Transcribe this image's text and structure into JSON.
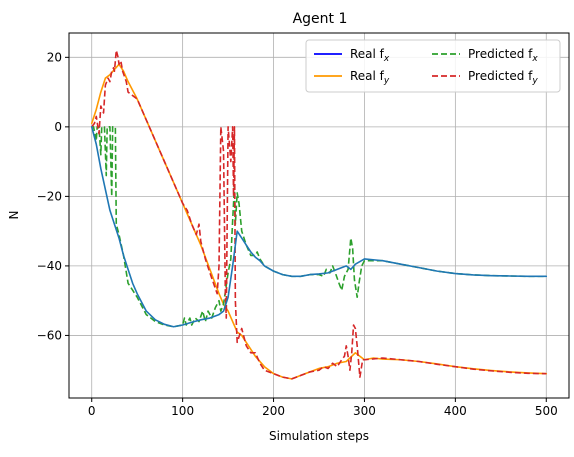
{
  "chart_data": {
    "type": "line",
    "title": "Agent 1",
    "xlabel": "Simulation steps",
    "ylabel": "N",
    "xlim": [
      -25,
      525
    ],
    "ylim": [
      -78,
      27
    ],
    "x_ticks": [
      0,
      100,
      200,
      300,
      400,
      500
    ],
    "y_ticks": [
      20,
      0,
      -20,
      -40,
      -60
    ],
    "grid": true,
    "legend": {
      "placement": "top-right",
      "columns": 2
    },
    "series": [
      {
        "name": "Real f_x",
        "name_base": "Real f",
        "subscript": "x",
        "color": "#0000ff",
        "dash": "solid",
        "legend_only": true,
        "points": []
      },
      {
        "name": "Real f_y",
        "name_base": "Real f",
        "subscript": "y",
        "color": "#ff9900",
        "dash": "solid",
        "points": [
          [
            0,
            1
          ],
          [
            5,
            5
          ],
          [
            10,
            10
          ],
          [
            15,
            14
          ],
          [
            20,
            15
          ],
          [
            25,
            16.5
          ],
          [
            30,
            18
          ],
          [
            35,
            16
          ],
          [
            40,
            13
          ],
          [
            50,
            8
          ],
          [
            60,
            2
          ],
          [
            70,
            -4
          ],
          [
            80,
            -10
          ],
          [
            90,
            -16
          ],
          [
            100,
            -22
          ],
          [
            110,
            -28
          ],
          [
            120,
            -34
          ],
          [
            130,
            -41
          ],
          [
            140,
            -48
          ],
          [
            145,
            -51
          ],
          [
            150,
            -53
          ],
          [
            155,
            -56
          ],
          [
            160,
            -59
          ],
          [
            165,
            -60
          ],
          [
            170,
            -62
          ],
          [
            180,
            -66
          ],
          [
            190,
            -69
          ],
          [
            200,
            -71
          ],
          [
            210,
            -72
          ],
          [
            220,
            -72.5
          ],
          [
            230,
            -71.5
          ],
          [
            240,
            -70.5
          ],
          [
            250,
            -69.5
          ],
          [
            260,
            -69
          ],
          [
            270,
            -68
          ],
          [
            280,
            -67.5
          ],
          [
            290,
            -65
          ],
          [
            300,
            -67
          ],
          [
            310,
            -66.5
          ],
          [
            320,
            -66.8
          ],
          [
            340,
            -67
          ],
          [
            360,
            -67.5
          ],
          [
            380,
            -68.2
          ],
          [
            400,
            -69
          ],
          [
            420,
            -69.6
          ],
          [
            440,
            -70.1
          ],
          [
            460,
            -70.5
          ],
          [
            480,
            -70.8
          ],
          [
            500,
            -71
          ]
        ]
      },
      {
        "name": "Predicted f_x",
        "name_base": "Predicted f",
        "subscript": "x",
        "color": "#2ca02c",
        "dash": "dashed",
        "points": [
          [
            0,
            0
          ],
          [
            2,
            0
          ],
          [
            5,
            -4
          ],
          [
            6,
            0
          ],
          [
            8,
            0
          ],
          [
            10,
            -8
          ],
          [
            11,
            0
          ],
          [
            14,
            0
          ],
          [
            16,
            -14
          ],
          [
            17,
            0
          ],
          [
            20,
            0
          ],
          [
            22,
            -20
          ],
          [
            23,
            0
          ],
          [
            26,
            0
          ],
          [
            27,
            -28
          ],
          [
            30,
            -31
          ],
          [
            35,
            -37
          ],
          [
            40,
            -45
          ],
          [
            45,
            -47
          ],
          [
            50,
            -49
          ],
          [
            60,
            -54
          ],
          [
            70,
            -56
          ],
          [
            80,
            -57
          ],
          [
            90,
            -57.5
          ],
          [
            100,
            -57
          ],
          [
            102,
            -55
          ],
          [
            104,
            -57
          ],
          [
            108,
            -55
          ],
          [
            110,
            -57
          ],
          [
            114,
            -55
          ],
          [
            118,
            -56
          ],
          [
            122,
            -53
          ],
          [
            125,
            -56
          ],
          [
            128,
            -53
          ],
          [
            132,
            -55
          ],
          [
            136,
            -52
          ],
          [
            140,
            -50
          ],
          [
            142,
            -53
          ],
          [
            145,
            -51
          ],
          [
            150,
            -42
          ],
          [
            153,
            -38
          ],
          [
            155,
            -27
          ],
          [
            157,
            -17
          ],
          [
            158,
            -28
          ],
          [
            160,
            -19
          ],
          [
            162,
            -22
          ],
          [
            165,
            -30
          ],
          [
            170,
            -34
          ],
          [
            175,
            -37
          ],
          [
            180,
            -37
          ],
          [
            182,
            -36
          ],
          [
            185,
            -38
          ],
          [
            190,
            -40
          ],
          [
            200,
            -41.5
          ],
          [
            210,
            -42.5
          ],
          [
            220,
            -43
          ],
          [
            230,
            -43
          ],
          [
            240,
            -42.5
          ],
          [
            250,
            -42.5
          ],
          [
            255,
            -43
          ],
          [
            258,
            -41
          ],
          [
            262,
            -42
          ],
          [
            265,
            -40
          ],
          [
            268,
            -42
          ],
          [
            272,
            -45
          ],
          [
            275,
            -47
          ],
          [
            278,
            -43
          ],
          [
            282,
            -41
          ],
          [
            285,
            -32
          ],
          [
            287,
            -35
          ],
          [
            289,
            -44
          ],
          [
            292,
            -49
          ],
          [
            294,
            -45
          ],
          [
            297,
            -40
          ],
          [
            300,
            -38.5
          ],
          [
            320,
            -38.5
          ],
          [
            340,
            -39.5
          ],
          [
            360,
            -40.5
          ],
          [
            380,
            -41.5
          ],
          [
            400,
            -42.2
          ],
          [
            420,
            -42.6
          ],
          [
            440,
            -42.8
          ],
          [
            460,
            -42.9
          ],
          [
            480,
            -43
          ],
          [
            500,
            -43
          ]
        ]
      },
      {
        "name": "Predicted f_y",
        "name_base": "Predicted f",
        "subscript": "y",
        "color": "#d62728",
        "dash": "dashed",
        "points": [
          [
            0,
            0
          ],
          [
            3,
            1
          ],
          [
            5,
            3
          ],
          [
            8,
            -2
          ],
          [
            10,
            6
          ],
          [
            13,
            4
          ],
          [
            15,
            12
          ],
          [
            18,
            14
          ],
          [
            20,
            13
          ],
          [
            22,
            16
          ],
          [
            24,
            17
          ],
          [
            25,
            16
          ],
          [
            27,
            22
          ],
          [
            29,
            20
          ],
          [
            30,
            18
          ],
          [
            32,
            19
          ],
          [
            34,
            16
          ],
          [
            38,
            13
          ],
          [
            40,
            10
          ],
          [
            45,
            9
          ],
          [
            50,
            8
          ],
          [
            60,
            2
          ],
          [
            70,
            -4
          ],
          [
            80,
            -10
          ],
          [
            90,
            -16
          ],
          [
            100,
            -22
          ],
          [
            105,
            -24
          ],
          [
            110,
            -28
          ],
          [
            115,
            -31
          ],
          [
            118,
            -28
          ],
          [
            120,
            -33
          ],
          [
            125,
            -38
          ],
          [
            130,
            -42
          ],
          [
            138,
            -48
          ],
          [
            140,
            -40
          ],
          [
            142,
            0
          ],
          [
            145,
            -7
          ],
          [
            147,
            -48
          ],
          [
            148,
            -55
          ],
          [
            150,
            0
          ],
          [
            153,
            -10
          ],
          [
            155,
            0
          ],
          [
            156,
            -20
          ],
          [
            157,
            0
          ],
          [
            158,
            -50
          ],
          [
            160,
            -62
          ],
          [
            165,
            -58
          ],
          [
            170,
            -63
          ],
          [
            175,
            -65
          ],
          [
            180,
            -65
          ],
          [
            185,
            -68
          ],
          [
            190,
            -70
          ],
          [
            200,
            -71
          ],
          [
            210,
            -72
          ],
          [
            220,
            -72.5
          ],
          [
            230,
            -71.5
          ],
          [
            240,
            -70.5
          ],
          [
            250,
            -70
          ],
          [
            255,
            -69
          ],
          [
            260,
            -69.5
          ],
          [
            265,
            -68
          ],
          [
            270,
            -69
          ],
          [
            275,
            -67
          ],
          [
            278,
            -66
          ],
          [
            280,
            -63
          ],
          [
            282,
            -66
          ],
          [
            284,
            -70
          ],
          [
            286,
            -65
          ],
          [
            288,
            -57
          ],
          [
            290,
            -58
          ],
          [
            292,
            -63
          ],
          [
            295,
            -72
          ],
          [
            298,
            -67
          ],
          [
            300,
            -67
          ],
          [
            320,
            -66.5
          ],
          [
            340,
            -67
          ],
          [
            360,
            -67.5
          ],
          [
            380,
            -68.3
          ],
          [
            400,
            -69
          ],
          [
            420,
            -69.7
          ],
          [
            440,
            -70.2
          ],
          [
            460,
            -70.6
          ],
          [
            480,
            -70.9
          ],
          [
            500,
            -71
          ]
        ]
      },
      {
        "name": "Real f_x",
        "name_base": "Real f",
        "subscript": "x",
        "color": "#1f77b4",
        "dash": "solid",
        "legend_only": false,
        "hide_in_legend": true,
        "points": [
          [
            0,
            0
          ],
          [
            5,
            -5
          ],
          [
            10,
            -12
          ],
          [
            15,
            -18
          ],
          [
            20,
            -24
          ],
          [
            25,
            -28
          ],
          [
            30,
            -32
          ],
          [
            35,
            -37
          ],
          [
            40,
            -41
          ],
          [
            45,
            -45
          ],
          [
            50,
            -48
          ],
          [
            60,
            -53
          ],
          [
            70,
            -55.5
          ],
          [
            80,
            -56.8
          ],
          [
            90,
            -57.5
          ],
          [
            100,
            -57
          ],
          [
            110,
            -56.2
          ],
          [
            120,
            -55.5
          ],
          [
            130,
            -55
          ],
          [
            140,
            -54
          ],
          [
            145,
            -53
          ],
          [
            150,
            -49
          ],
          [
            155,
            -40
          ],
          [
            160,
            -30
          ],
          [
            165,
            -32
          ],
          [
            170,
            -34
          ],
          [
            175,
            -36
          ],
          [
            180,
            -37.5
          ],
          [
            185,
            -38.5
          ],
          [
            190,
            -40
          ],
          [
            200,
            -41.5
          ],
          [
            210,
            -42.5
          ],
          [
            220,
            -43
          ],
          [
            230,
            -43
          ],
          [
            240,
            -42.5
          ],
          [
            250,
            -42.3
          ],
          [
            260,
            -42
          ],
          [
            270,
            -41
          ],
          [
            280,
            -40
          ],
          [
            285,
            -41
          ],
          [
            290,
            -39.5
          ],
          [
            300,
            -38
          ],
          [
            320,
            -38.5
          ],
          [
            340,
            -39.5
          ],
          [
            360,
            -40.5
          ],
          [
            380,
            -41.5
          ],
          [
            400,
            -42.2
          ],
          [
            420,
            -42.6
          ],
          [
            440,
            -42.8
          ],
          [
            460,
            -42.9
          ],
          [
            480,
            -43
          ],
          [
            500,
            -43
          ]
        ]
      }
    ]
  }
}
